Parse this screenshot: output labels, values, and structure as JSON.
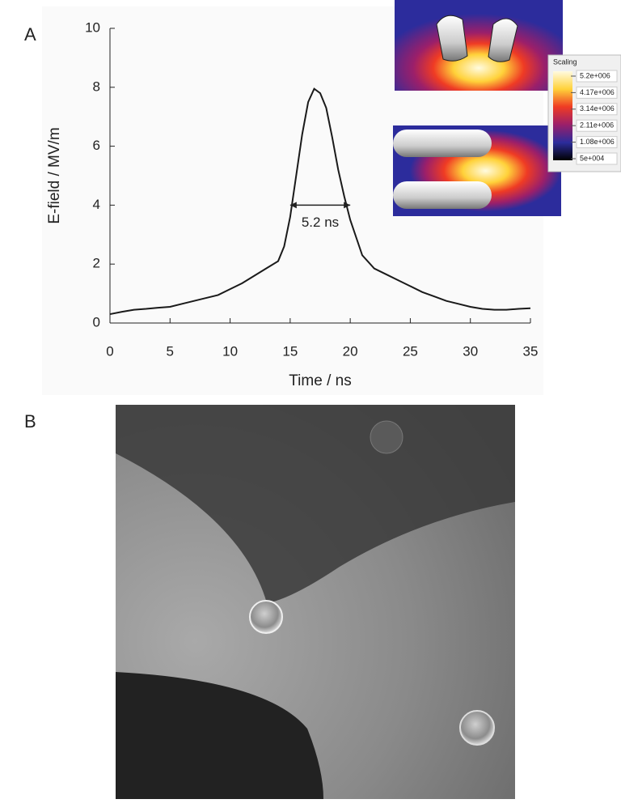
{
  "chart_data": {
    "type": "line",
    "panel_label": "A",
    "xlabel": "Time / ns",
    "ylabel": "E-field / MV/m",
    "x": [
      0,
      1,
      2,
      3,
      4,
      5,
      6,
      7,
      8,
      9,
      10,
      11,
      12,
      13,
      14,
      14.5,
      15,
      15.5,
      16,
      16.5,
      17,
      17.5,
      18,
      18.5,
      19,
      19.5,
      20,
      21,
      22,
      23,
      24,
      25,
      26,
      27,
      28,
      29,
      30,
      31,
      32,
      33,
      34,
      35
    ],
    "series": [
      {
        "color": "#1a1a1a",
        "values": [
          0.3,
          0.38,
          0.45,
          0.48,
          0.52,
          0.55,
          0.65,
          0.75,
          0.85,
          0.95,
          1.15,
          1.35,
          1.6,
          1.85,
          2.1,
          2.6,
          3.6,
          5,
          6.4,
          7.5,
          7.95,
          7.8,
          7.3,
          6.3,
          5.2,
          4.3,
          3.5,
          2.3,
          1.85,
          1.65,
          1.45,
          1.25,
          1.05,
          0.9,
          0.75,
          0.65,
          0.55,
          0.48,
          0.45,
          0.45,
          0.48,
          0.5
        ]
      }
    ],
    "xlim": [
      0,
      35
    ],
    "xticks": [
      0,
      5,
      10,
      15,
      20,
      25,
      30,
      35
    ],
    "ylim": [
      0,
      10
    ],
    "yticks": [
      0,
      2,
      4,
      6,
      8,
      10
    ],
    "fwhm": {
      "label": "5.2 ns",
      "x_start": 15,
      "x_end": 20,
      "y": 4
    },
    "colorbar": {
      "title": "Scaling",
      "ticks": [
        {
          "value": 5200000,
          "label": "5.2e+006"
        },
        {
          "value": 4170000,
          "label": "4.17e+006"
        },
        {
          "value": 3140000,
          "label": "3.14e+006"
        },
        {
          "value": 2110000,
          "label": "2.11e+006"
        },
        {
          "value": 1080000,
          "label": "1.08e+006"
        },
        {
          "value": 50000,
          "label": "5e+004"
        }
      ]
    }
  },
  "panel_b": {
    "label": "B"
  }
}
